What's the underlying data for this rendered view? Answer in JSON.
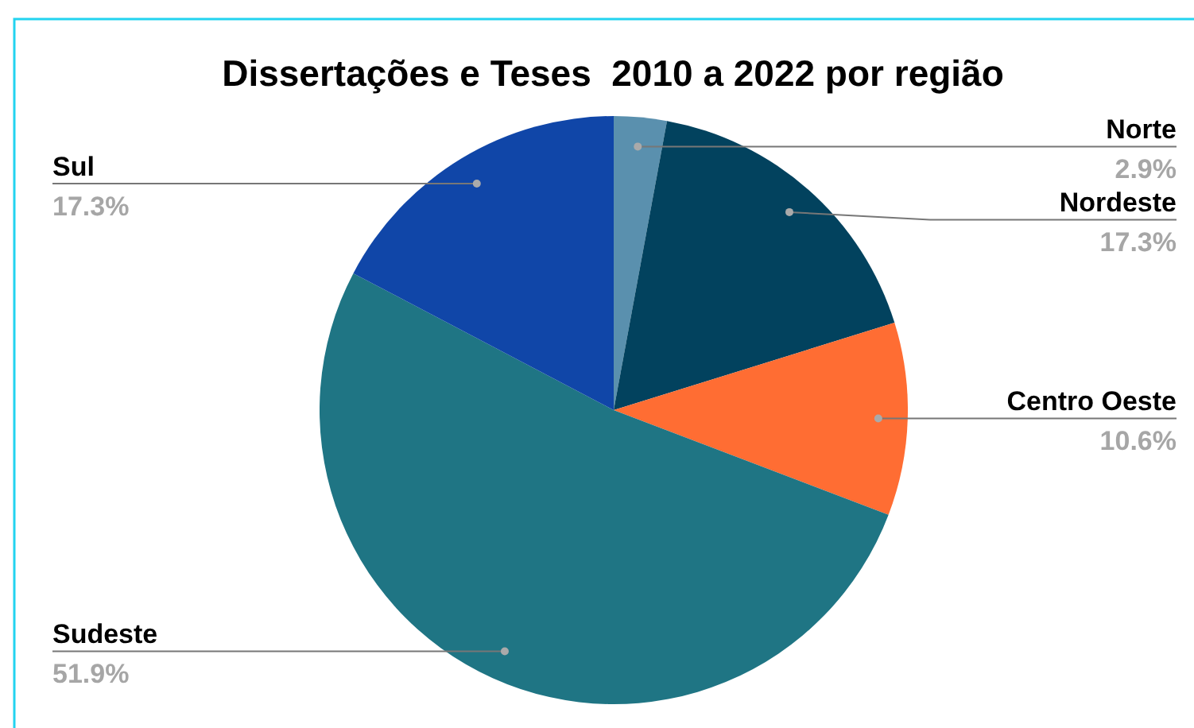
{
  "chart_data": {
    "type": "pie",
    "title": "Dissertações e Teses  2010 a 2022 por região",
    "categories": [
      "Norte",
      "Nordeste",
      "Centro Oeste",
      "Sudeste",
      "Sul"
    ],
    "values": [
      2.9,
      17.3,
      10.6,
      51.9,
      17.3
    ],
    "value_labels": [
      "2.9%",
      "17.3%",
      "10.6%",
      "51.9%",
      "17.3%"
    ],
    "colors": [
      "#5a90ae",
      "#02425e",
      "#ff6d33",
      "#1f7584",
      "#1046a8"
    ]
  }
}
